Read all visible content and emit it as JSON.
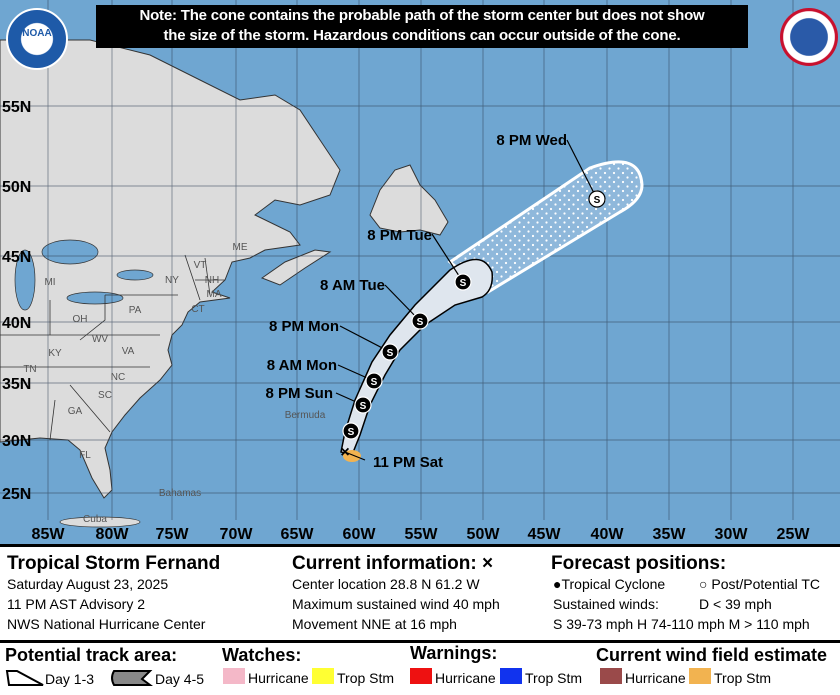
{
  "note": {
    "line1": "Note: The cone contains the probable path of the storm center but does not show",
    "line2": "the size of the storm. Hazardous conditions can occur outside of the cone."
  },
  "logos": {
    "left": "NOAA",
    "right": "National Weather Service"
  },
  "map": {
    "lat_labels": [
      "55N",
      "50N",
      "45N",
      "40N",
      "35N",
      "30N",
      "25N"
    ],
    "lon_labels": [
      "85W",
      "80W",
      "75W",
      "70W",
      "65W",
      "60W",
      "55W",
      "50W",
      "45W",
      "40W",
      "35W",
      "30W",
      "25W"
    ],
    "place_labels": [
      "ME",
      "VT",
      "NH",
      "MA",
      "CT",
      "NY",
      "PA",
      "MI",
      "OH",
      "WV",
      "VA",
      "KY",
      "TN",
      "NC",
      "SC",
      "GA",
      "FL",
      "Bermuda",
      "Bahamas",
      "Cuba"
    ],
    "forecast_points": [
      {
        "label": "11 PM Sat",
        "type": "current",
        "symbol": "x"
      },
      {
        "label": "",
        "type": "tropical-cyclone",
        "symbol": "S"
      },
      {
        "label": "8 PM Sun",
        "type": "tropical-cyclone",
        "symbol": "S"
      },
      {
        "label": "8 AM Mon",
        "type": "tropical-cyclone",
        "symbol": "S"
      },
      {
        "label": "8 PM Mon",
        "type": "tropical-cyclone",
        "symbol": "S"
      },
      {
        "label": "8 AM Tue",
        "type": "tropical-cyclone",
        "symbol": "S"
      },
      {
        "label": "8 PM Tue",
        "type": "tropical-cyclone",
        "symbol": "S"
      },
      {
        "label": "8 PM Wed",
        "type": "post-potential-tc",
        "symbol": "S"
      }
    ],
    "colors": {
      "ocean": "#6fa6d1",
      "land": "#dcdcdc",
      "cone_day13": "#dfe6ee",
      "wind_trop_stm": "#f2b350"
    }
  },
  "info": {
    "storm_name": "Tropical Storm Fernand",
    "date": "Saturday August 23, 2025",
    "advisory": "11 PM AST Advisory 2",
    "center": "NWS National Hurricane Center",
    "current_title": "Current information: ×",
    "location": "Center location 28.8 N 61.2 W",
    "max_wind": "Maximum sustained wind 40 mph",
    "movement": "Movement NNE at 16 mph",
    "forecast_title": "Forecast positions:",
    "tc_label": "Tropical Cyclone",
    "ptc_label": "Post/Potential TC",
    "sustained_label": "Sustained winds:",
    "d_label": "D < 39 mph",
    "categories": "S 39-73 mph  H 74-110 mph  M > 110 mph"
  },
  "legend": {
    "track_title": "Potential track area:",
    "day13": "Day 1-3",
    "day45": "Day 4-5",
    "watches_title": "Watches:",
    "warnings_title": "Warnings:",
    "wind_title": "Current wind field estimate",
    "items": [
      {
        "label": "Hurricane",
        "color": "#f4b8c8"
      },
      {
        "label": "Trop Stm",
        "color": "#ffff33"
      },
      {
        "label": "Hurricane",
        "color": "#ee1111"
      },
      {
        "label": "Trop Stm",
        "color": "#1133ee"
      },
      {
        "label": "Hurricane",
        "color": "#9a4a4a"
      },
      {
        "label": "Trop Stm",
        "color": "#f2b350"
      }
    ]
  }
}
